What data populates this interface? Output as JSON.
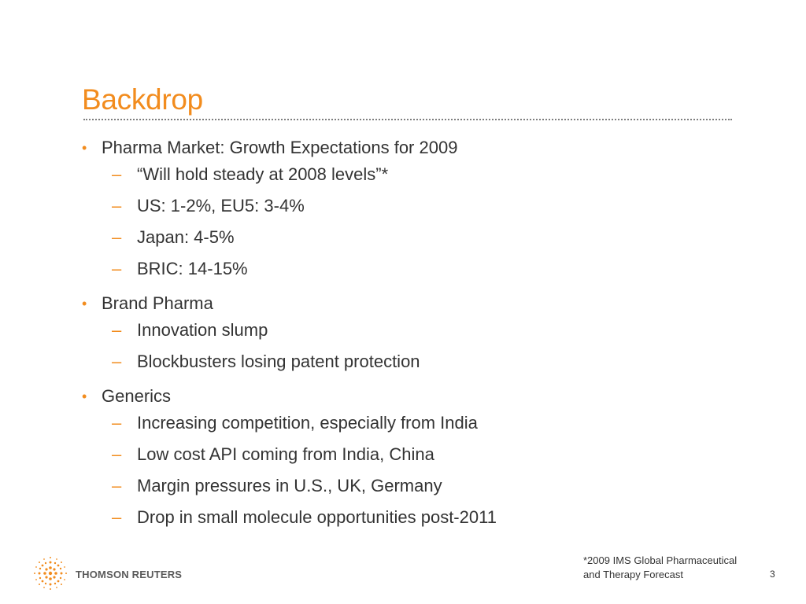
{
  "slide": {
    "title": "Backdrop",
    "page_number": "3",
    "footnote_line1": "*2009 IMS Global Pharmaceutical",
    "footnote_line2": "and Therapy Forecast",
    "logo_text": "THOMSON REUTERS",
    "accent_color": "#f28c1e",
    "bullets": [
      {
        "text": "Pharma Market: Growth Expectations for 2009",
        "subs": [
          "“Will hold steady at 2008 levels”*",
          "US: 1-2%, EU5: 3-4%",
          "Japan: 4-5%",
          "BRIC: 14-15%"
        ]
      },
      {
        "text": "Brand Pharma",
        "subs": [
          "Innovation slump",
          "Blockbusters losing patent protection"
        ]
      },
      {
        "text": "Generics",
        "subs": [
          "Increasing competition, especially from India",
          "Low cost API coming from India, China",
          "Margin pressures in U.S., UK, Germany",
          "Drop in small molecule opportunities post-2011"
        ]
      }
    ]
  }
}
